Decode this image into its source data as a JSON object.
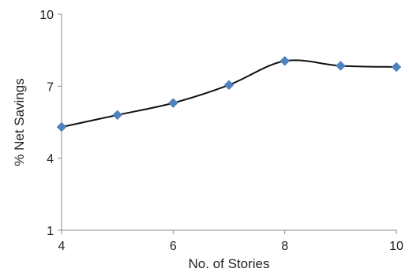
{
  "chart_data": {
    "type": "line",
    "title": "",
    "xlabel": "No. of Stories",
    "ylabel": "% Net Savings",
    "xlim": [
      4,
      10
    ],
    "ylim": [
      1,
      10
    ],
    "x_ticks": [
      "4",
      "6",
      "8",
      "10"
    ],
    "y_ticks": [
      "1",
      "4",
      "7",
      "10"
    ],
    "grid": false,
    "legend": "none",
    "series": [
      {
        "x": [
          4,
          5,
          6,
          7,
          8,
          9,
          10
        ],
        "y": [
          5.3,
          5.8,
          6.3,
          7.05,
          8.05,
          7.85,
          7.8
        ],
        "line_color": "#111111",
        "marker": "diamond",
        "marker_color": "#4f81bd"
      }
    ]
  }
}
